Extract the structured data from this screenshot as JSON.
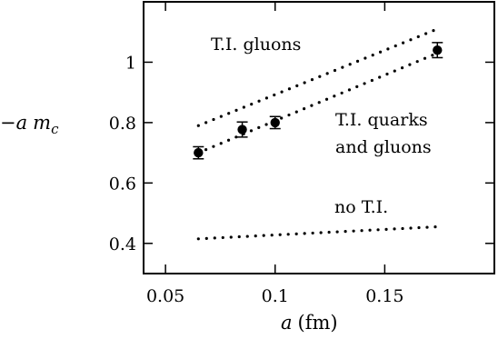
{
  "chart_data": {
    "type": "scatter",
    "xlabel_italic": "a",
    "xlabel_unit": "(fm)",
    "ylabel_prefix": "−",
    "ylabel_italic_1": "a",
    "ylabel_italic_2": "m",
    "ylabel_subscript": "c",
    "xlim": [
      0.04,
      0.2
    ],
    "ylim": [
      0.3,
      1.2
    ],
    "xticks": [
      0.05,
      0.1,
      0.15
    ],
    "xtick_labels": [
      "0.05",
      "0.1",
      "0.15"
    ],
    "yticks": [
      0.4,
      0.6,
      0.8,
      1.0
    ],
    "ytick_labels": [
      "0.4",
      "0.6",
      "0.8",
      "1"
    ],
    "grid": false,
    "series": [
      {
        "style": "points-with-errorbars",
        "color": "#000000",
        "points": [
          {
            "x": 0.065,
            "y": 0.7,
            "err": 0.02
          },
          {
            "x": 0.085,
            "y": 0.777,
            "err": 0.025
          },
          {
            "x": 0.1,
            "y": 0.8,
            "err": 0.02
          },
          {
            "x": 0.174,
            "y": 1.04,
            "err": 0.025
          }
        ]
      },
      {
        "style": "dotted-line",
        "color": "#000000",
        "label": "T.I. gluons",
        "x": [
          0.065,
          0.174
        ],
        "y": [
          0.79,
          1.11
        ]
      },
      {
        "style": "dotted-line",
        "color": "#000000",
        "label_line1": "T.I. quarks",
        "label_line2": "and gluons",
        "x": [
          0.065,
          0.174
        ],
        "y": [
          0.7,
          1.03
        ]
      },
      {
        "style": "dotted-line",
        "color": "#000000",
        "label": "no T.I.",
        "x": [
          0.065,
          0.174
        ],
        "y": [
          0.415,
          0.455
        ]
      }
    ]
  }
}
